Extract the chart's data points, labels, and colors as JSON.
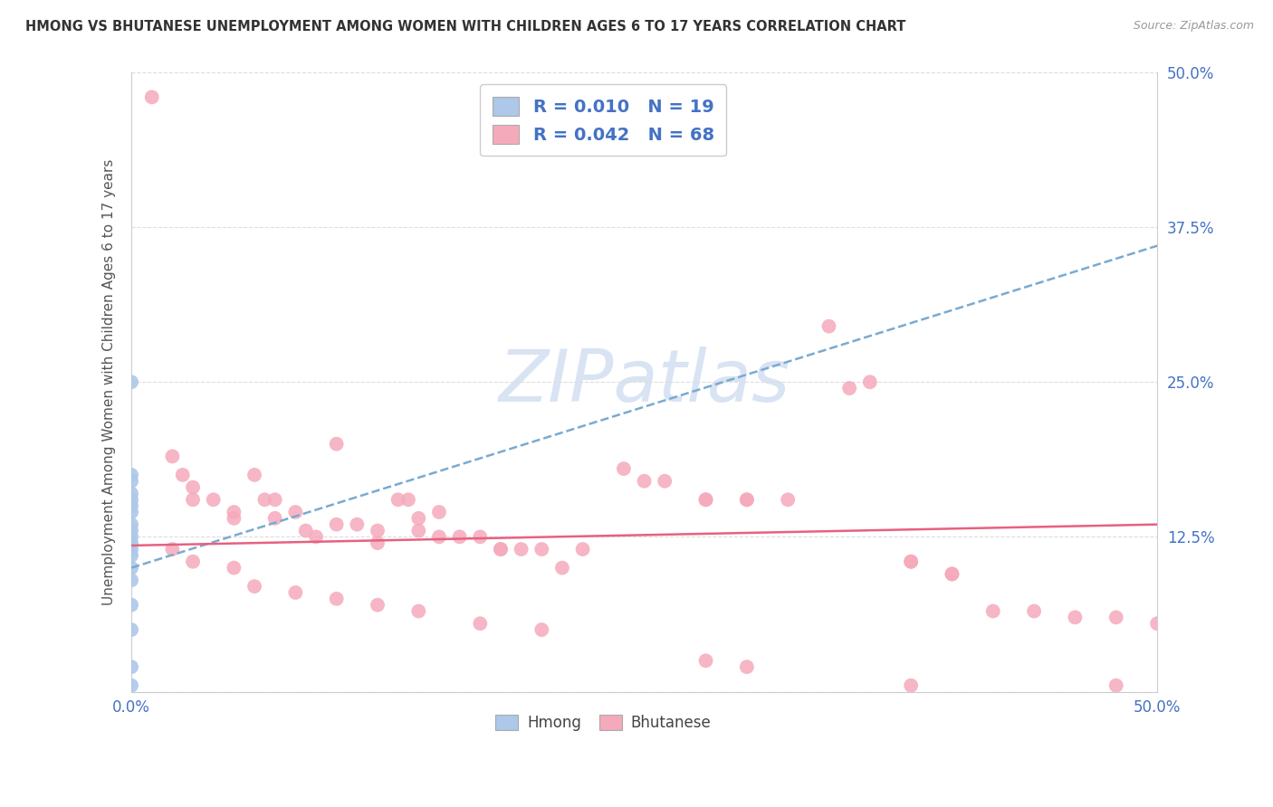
{
  "title": "HMONG VS BHUTANESE UNEMPLOYMENT AMONG WOMEN WITH CHILDREN AGES 6 TO 17 YEARS CORRELATION CHART",
  "source": "Source: ZipAtlas.com",
  "ylabel": "Unemployment Among Women with Children Ages 6 to 17 years",
  "watermark": "ZIPatlas",
  "xlim": [
    0.0,
    0.5
  ],
  "ylim": [
    0.0,
    0.5
  ],
  "xticks": [
    0.0,
    0.125,
    0.25,
    0.375,
    0.5
  ],
  "yticks": [
    0.0,
    0.125,
    0.25,
    0.375,
    0.5
  ],
  "hmong_color": "#adc8e8",
  "bhutanese_color": "#f5aabb",
  "hmong_line_color": "#7aaad0",
  "bhutanese_line_color": "#e86080",
  "hmong_R": 0.01,
  "hmong_N": 19,
  "bhutanese_R": 0.042,
  "bhutanese_N": 68,
  "background_color": "#ffffff",
  "grid_color": "#dddddd",
  "tick_label_color": "#4472c4",
  "hmong_x": [
    0.0,
    0.0,
    0.0,
    0.0,
    0.0,
    0.0,
    0.0,
    0.0,
    0.0,
    0.0,
    0.0,
    0.0,
    0.0,
    0.0,
    0.0,
    0.0,
    0.0,
    0.0,
    0.0
  ],
  "hmong_y": [
    0.25,
    0.175,
    0.17,
    0.16,
    0.155,
    0.15,
    0.145,
    0.135,
    0.13,
    0.125,
    0.12,
    0.115,
    0.11,
    0.1,
    0.09,
    0.07,
    0.05,
    0.02,
    0.005
  ],
  "hmong_trend_x": [
    0.0,
    0.5
  ],
  "hmong_trend_y": [
    0.1,
    0.36
  ],
  "bhutanese_trend_x": [
    0.0,
    0.5
  ],
  "bhutanese_trend_y": [
    0.118,
    0.135
  ],
  "bhutanese_x": [
    0.01,
    0.02,
    0.025,
    0.03,
    0.03,
    0.04,
    0.05,
    0.05,
    0.06,
    0.065,
    0.07,
    0.07,
    0.08,
    0.085,
    0.09,
    0.1,
    0.1,
    0.11,
    0.12,
    0.12,
    0.13,
    0.135,
    0.14,
    0.14,
    0.15,
    0.15,
    0.16,
    0.17,
    0.18,
    0.18,
    0.19,
    0.2,
    0.21,
    0.22,
    0.24,
    0.25,
    0.26,
    0.28,
    0.28,
    0.3,
    0.3,
    0.32,
    0.34,
    0.35,
    0.36,
    0.38,
    0.38,
    0.4,
    0.4,
    0.42,
    0.44,
    0.46,
    0.48,
    0.5,
    0.02,
    0.03,
    0.05,
    0.06,
    0.08,
    0.1,
    0.12,
    0.14,
    0.17,
    0.2,
    0.28,
    0.3,
    0.38,
    0.48
  ],
  "bhutanese_y": [
    0.48,
    0.19,
    0.175,
    0.165,
    0.155,
    0.155,
    0.145,
    0.14,
    0.175,
    0.155,
    0.155,
    0.14,
    0.145,
    0.13,
    0.125,
    0.2,
    0.135,
    0.135,
    0.13,
    0.12,
    0.155,
    0.155,
    0.14,
    0.13,
    0.145,
    0.125,
    0.125,
    0.125,
    0.115,
    0.115,
    0.115,
    0.115,
    0.1,
    0.115,
    0.18,
    0.17,
    0.17,
    0.155,
    0.155,
    0.155,
    0.155,
    0.155,
    0.295,
    0.245,
    0.25,
    0.105,
    0.105,
    0.095,
    0.095,
    0.065,
    0.065,
    0.06,
    0.06,
    0.055,
    0.115,
    0.105,
    0.1,
    0.085,
    0.08,
    0.075,
    0.07,
    0.065,
    0.055,
    0.05,
    0.025,
    0.02,
    0.005,
    0.005
  ]
}
